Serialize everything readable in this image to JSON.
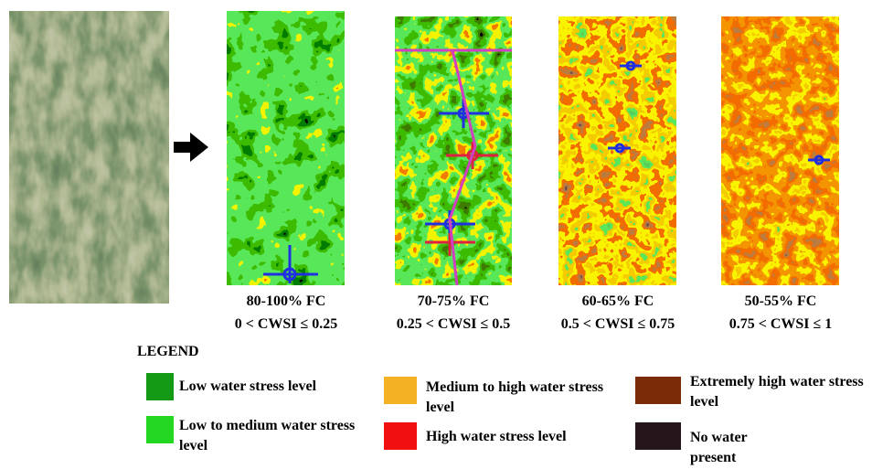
{
  "panels": [
    {
      "label": "80-100% FC",
      "range": "0 < CWSI ≤ 0.25"
    },
    {
      "label": "70-75% FC",
      "range": "0.25 < CWSI ≤ 0.5"
    },
    {
      "label": "60-65% FC",
      "range": "0.5 < CWSI ≤ 0.75"
    },
    {
      "label": "50-55% FC",
      "range": "0.75 < CWSI ≤ 1"
    }
  ],
  "legend": {
    "title": "LEGEND",
    "items": [
      {
        "label": "Low water stress level",
        "color": "#159a16"
      },
      {
        "label": "Low to medium water stress level",
        "color": "#22d622"
      },
      {
        "label": "Medium to high water stress level",
        "color": "#f4b124"
      },
      {
        "label": "High water stress level",
        "color": "#f01010"
      },
      {
        "label": "Extremely high water stress level",
        "color": "#7a2c08"
      },
      {
        "label": "No water present",
        "color": "#24161a"
      }
    ]
  }
}
